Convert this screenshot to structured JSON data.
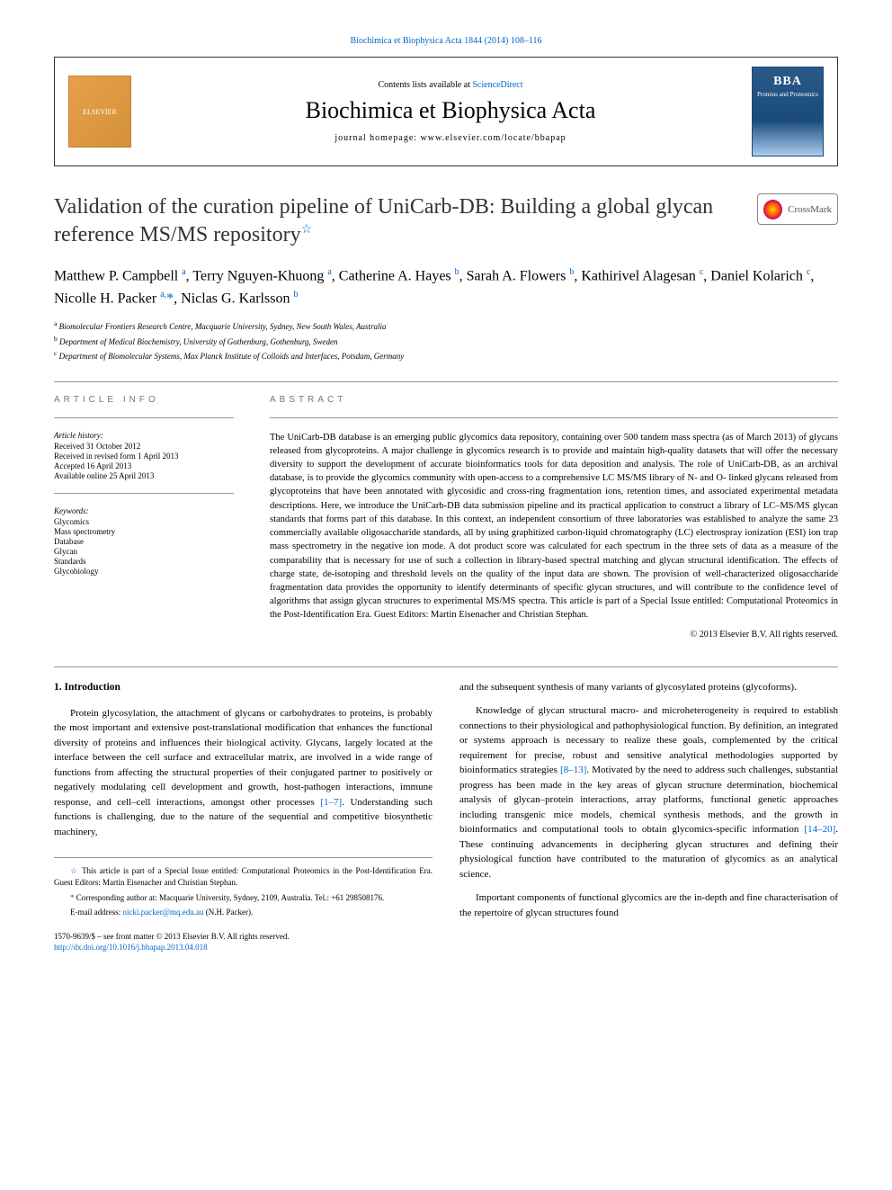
{
  "top_citation": "Biochimica et Biophysica Acta 1844 (2014) 108–116",
  "header": {
    "contents_prefix": "Contents lists available at ",
    "contents_link": "ScienceDirect",
    "journal_name": "Biochimica et Biophysica Acta",
    "homepage_label": "journal homepage: www.elsevier.com/locate/bbapap",
    "elsevier_label": "ELSEVIER",
    "bba_label": "BBA",
    "bba_sub": "Proteins and Proteomics"
  },
  "crossmark_label": "CrossMark",
  "title": "Validation of the curation pipeline of UniCarb-DB: Building a global glycan reference MS/MS repository",
  "authors_html": "Matthew P. Campbell <sup>a</sup>, Terry Nguyen-Khuong <sup>a</sup>, Catherine A. Hayes <sup>b</sup>, Sarah A. Flowers <sup>b</sup>, Kathirivel Alagesan <sup>c</sup>, Daniel Kolarich <sup>c</sup>, Nicolle H. Packer <sup>a,</sup>",
  "authors_last": "Niclas G. Karlsson",
  "authors_last_sup": "b",
  "affiliations": {
    "a": "Biomolecular Frontiers Research Centre, Macquarie University, Sydney, New South Wales, Australia",
    "b": "Department of Medical Biochemistry, University of Gothenburg, Gothenburg, Sweden",
    "c": "Department of Biomolecular Systems, Max Planck Institute of Colloids and Interfaces, Potsdam, Germany"
  },
  "article_info": {
    "heading": "ARTICLE INFO",
    "history_label": "Article history:",
    "history": [
      "Received 31 October 2012",
      "Received in revised form 1 April 2013",
      "Accepted 16 April 2013",
      "Available online 25 April 2013"
    ],
    "keywords_label": "Keywords:",
    "keywords": [
      "Glycomics",
      "Mass spectrometry",
      "Database",
      "Glycan",
      "Standards",
      "Glycobiology"
    ]
  },
  "abstract": {
    "heading": "ABSTRACT",
    "text": "The UniCarb-DB database is an emerging public glycomics data repository, containing over 500 tandem mass spectra (as of March 2013) of glycans released from glycoproteins. A major challenge in glycomics research is to provide and maintain high-quality datasets that will offer the necessary diversity to support the development of accurate bioinformatics tools for data deposition and analysis. The role of UniCarb-DB, as an archival database, is to provide the glycomics community with open-access to a comprehensive LC MS/MS library of N- and O- linked glycans released from glycoproteins that have been annotated with glycosidic and cross-ring fragmentation ions, retention times, and associated experimental metadata descriptions. Here, we introduce the UniCarb-DB data submission pipeline and its practical application to construct a library of LC–MS/MS glycan standards that forms part of this database. In this context, an independent consortium of three laboratories was established to analyze the same 23 commercially available oligosaccharide standards, all by using graphitized carbon-liquid chromatography (LC) electrospray ionization (ESI) ion trap mass spectrometry in the negative ion mode. A dot product score was calculated for each spectrum in the three sets of data as a measure of the comparability that is necessary for use of such a collection in library-based spectral matching and glycan structural identification. The effects of charge state, de-isotoping and threshold levels on the quality of the input data are shown. The provision of well-characterized oligosaccharide fragmentation data provides the opportunity to identify determinants of specific glycan structures, and will contribute to the confidence level of algorithms that assign glycan structures to experimental MS/MS spectra. This article is part of a Special Issue entitled: Computational Proteomics in the Post-Identification Era. Guest Editors: Martin Eisenacher and Christian Stephan.",
    "copyright": "© 2013 Elsevier B.V. All rights reserved."
  },
  "section1": {
    "heading": "1. Introduction",
    "p1a": "Protein glycosylation, the attachment of glycans or carbohydrates to proteins, is probably the most important and extensive post-translational modification that enhances the functional diversity of proteins and influences their biological activity. Glycans, largely located at the interface between the cell surface and extracellular matrix, are involved in a wide range of functions from affecting the structural properties of their conjugated partner to positively or negatively modulating cell development and growth, host-pathogen interactions, immune response, and cell–cell interactions, amongst other processes ",
    "p1_ref1": "[1–7]",
    "p1b": ". Understanding such functions is challenging, due to the nature of the sequential and competitive biosynthetic machinery,",
    "p2": "and the subsequent synthesis of many variants of glycosylated proteins (glycoforms).",
    "p3a": "Knowledge of glycan structural macro- and microheterogeneity is required to establish connections to their physiological and pathophysiological function. By definition, an integrated or systems approach is necessary to realize these goals, complemented by the critical requirement for precise, robust and sensitive analytical methodologies supported by bioinformatics strategies ",
    "p3_ref1": "[8–13]",
    "p3b": ". Motivated by the need to address such challenges, substantial progress has been made in the key areas of glycan structure determination, biochemical analysis of glycan–protein interactions, array platforms, functional genetic approaches including transgenic mice models, chemical synthesis methods, and the growth in bioinformatics and computational tools to obtain glycomics-specific information ",
    "p3_ref2": "[14–20]",
    "p3c": ". These continuing advancements in deciphering glycan structures and defining their physiological function have contributed to the maturation of glycomics as an analytical science.",
    "p4": "Important components of functional glycomics are the in-depth and fine characterisation of the repertoire of glycan structures found"
  },
  "footnotes": {
    "star": "This article is part of a Special Issue entitled: Computational Proteomics in the Post-Identification Era. Guest Editors: Martin Eisenacher and Christian Stephan.",
    "corr": "Corresponding author at: Macquarie University, Sydney, 2109, Australia. Tel.: +61 298508176.",
    "email_label": "E-mail address: ",
    "email": "nicki.packer@mq.edu.au",
    "email_suffix": " (N.H. Packer)."
  },
  "bottom": {
    "issn": "1570-9639/$ – see front matter © 2013 Elsevier B.V. All rights reserved.",
    "doi": "http://dx.doi.org/10.1016/j.bbapap.2013.04.018"
  },
  "colors": {
    "link": "#0066cc",
    "text": "#000000",
    "heading_gray": "#777777",
    "border": "#999999"
  }
}
